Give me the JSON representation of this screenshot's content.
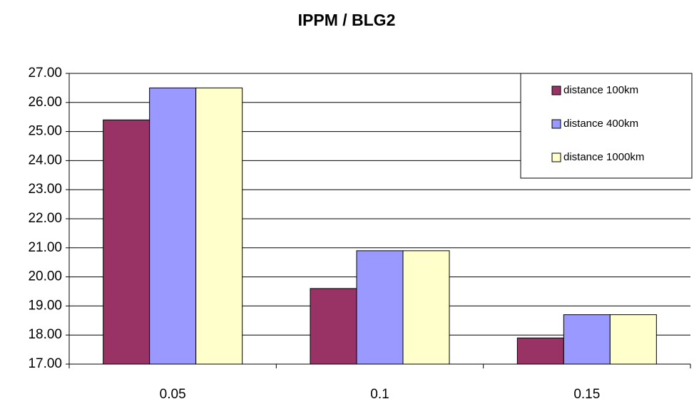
{
  "chart_data": {
    "type": "bar",
    "title": "IPPM / BLG2",
    "categories": [
      "0.05",
      "0.1",
      "0.15"
    ],
    "series": [
      {
        "name": "distance 100km",
        "color": "#993366",
        "values": [
          25.4,
          19.6,
          17.9
        ]
      },
      {
        "name": "distance 400km",
        "color": "#9999ff",
        "values": [
          26.5,
          20.9,
          18.7
        ]
      },
      {
        "name": "distance 1000km",
        "color": "#ffffcc",
        "values": [
          26.5,
          20.9,
          18.7
        ]
      }
    ],
    "ylim": [
      17,
      27
    ],
    "yticks": [
      {
        "value": 17,
        "label": "17.00"
      },
      {
        "value": 18,
        "label": "18.00"
      },
      {
        "value": 19,
        "label": "19.00"
      },
      {
        "value": 20,
        "label": "20.00"
      },
      {
        "value": 21,
        "label": "21.00"
      },
      {
        "value": 22,
        "label": "22.00"
      },
      {
        "value": 23,
        "label": "23.00"
      },
      {
        "value": 24,
        "label": "24.00"
      },
      {
        "value": 25,
        "label": "25.00"
      },
      {
        "value": 26,
        "label": "26.00"
      },
      {
        "value": 27,
        "label": "27.00"
      }
    ],
    "grid": true,
    "legend": "upper right"
  }
}
